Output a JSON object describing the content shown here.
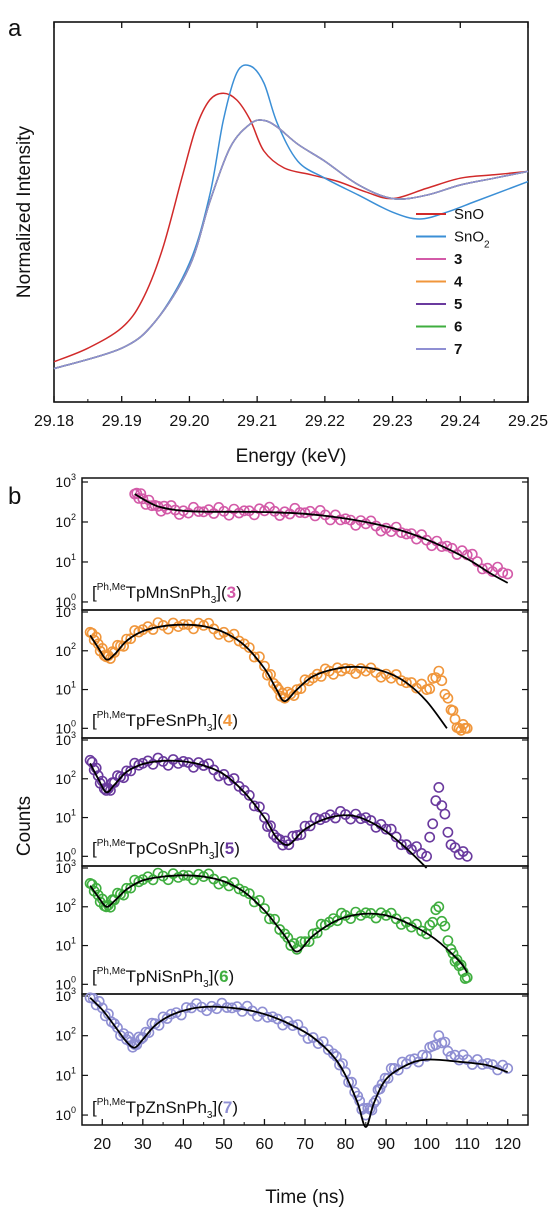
{
  "figure": {
    "panel_a_label": "a",
    "panel_b_label": "b"
  },
  "chart_data": [
    {
      "type": "line",
      "panel": "a",
      "xlabel": "Energy (keV)",
      "ylabel": "Normalized Intensity",
      "xlim": [
        29.18,
        29.25
      ],
      "xticks": [
        "29.18",
        "29.19",
        "29.20",
        "29.21",
        "29.22",
        "29.23",
        "29.24",
        "29.25"
      ],
      "ylim": [
        0,
        1
      ],
      "yticks_shown": false,
      "legend_position": "right",
      "series": [
        {
          "name": "SnO",
          "name_bold": false,
          "color": "#d12a2a",
          "x": [
            29.18,
            29.185,
            29.19,
            29.193,
            29.196,
            29.199,
            29.201,
            29.203,
            29.205,
            29.207,
            29.209,
            29.211,
            29.214,
            29.218,
            29.222,
            29.226,
            29.23,
            29.235,
            29.24,
            29.245,
            29.25
          ],
          "y": [
            0.03,
            0.07,
            0.13,
            0.21,
            0.36,
            0.58,
            0.72,
            0.8,
            0.82,
            0.8,
            0.74,
            0.65,
            0.6,
            0.58,
            0.56,
            0.53,
            0.51,
            0.54,
            0.57,
            0.58,
            0.59
          ]
        },
        {
          "name": "SnO",
          "name_sub": "2",
          "color": "#3b8fd6",
          "x": [
            29.18,
            29.19,
            29.195,
            29.2,
            29.203,
            29.205,
            29.207,
            29.209,
            29.211,
            29.213,
            29.216,
            29.22,
            29.225,
            29.23,
            29.234,
            29.238,
            29.242,
            29.246,
            29.25
          ],
          "y": [
            0.01,
            0.07,
            0.15,
            0.32,
            0.52,
            0.74,
            0.88,
            0.9,
            0.85,
            0.73,
            0.62,
            0.57,
            0.52,
            0.47,
            0.45,
            0.47,
            0.5,
            0.53,
            0.56
          ]
        },
        {
          "name": "3",
          "name_bold": true,
          "color": "#d35aa8",
          "x": [
            29.18,
            29.19,
            29.195,
            29.2,
            29.203,
            29.206,
            29.209,
            29.211,
            29.213,
            29.216,
            29.22,
            29.225,
            29.23,
            29.235,
            29.24,
            29.245,
            29.25
          ],
          "y": [
            0.01,
            0.07,
            0.15,
            0.31,
            0.5,
            0.66,
            0.73,
            0.74,
            0.72,
            0.67,
            0.62,
            0.55,
            0.51,
            0.52,
            0.55,
            0.57,
            0.59
          ]
        },
        {
          "name": "4",
          "name_bold": true,
          "color": "#f0963b",
          "x": [
            29.18,
            29.19,
            29.195,
            29.2,
            29.203,
            29.206,
            29.209,
            29.211,
            29.213,
            29.216,
            29.22,
            29.225,
            29.23,
            29.235,
            29.24,
            29.245,
            29.25
          ],
          "y": [
            0.01,
            0.07,
            0.15,
            0.31,
            0.5,
            0.66,
            0.73,
            0.74,
            0.72,
            0.67,
            0.62,
            0.55,
            0.51,
            0.52,
            0.55,
            0.57,
            0.59
          ]
        },
        {
          "name": "5",
          "name_bold": true,
          "color": "#6a3a9e",
          "x": [
            29.18,
            29.19,
            29.195,
            29.2,
            29.203,
            29.206,
            29.209,
            29.211,
            29.213,
            29.216,
            29.22,
            29.225,
            29.23,
            29.235,
            29.24,
            29.245,
            29.25
          ],
          "y": [
            0.01,
            0.07,
            0.15,
            0.31,
            0.5,
            0.66,
            0.73,
            0.74,
            0.72,
            0.67,
            0.62,
            0.55,
            0.51,
            0.52,
            0.55,
            0.57,
            0.59
          ]
        },
        {
          "name": "6",
          "name_bold": true,
          "color": "#3fae3f",
          "x": [
            29.18,
            29.19,
            29.195,
            29.2,
            29.203,
            29.206,
            29.209,
            29.211,
            29.213,
            29.216,
            29.22,
            29.225,
            29.23,
            29.235,
            29.24,
            29.245,
            29.25
          ],
          "y": [
            0.01,
            0.07,
            0.15,
            0.31,
            0.5,
            0.66,
            0.73,
            0.74,
            0.72,
            0.67,
            0.62,
            0.55,
            0.51,
            0.52,
            0.55,
            0.57,
            0.59
          ]
        },
        {
          "name": "7",
          "name_bold": true,
          "color": "#8f8fd3",
          "x": [
            29.18,
            29.19,
            29.195,
            29.2,
            29.203,
            29.206,
            29.209,
            29.211,
            29.213,
            29.216,
            29.22,
            29.225,
            29.23,
            29.235,
            29.24,
            29.245,
            29.25
          ],
          "y": [
            0.01,
            0.07,
            0.15,
            0.31,
            0.5,
            0.66,
            0.73,
            0.74,
            0.72,
            0.67,
            0.62,
            0.55,
            0.51,
            0.52,
            0.55,
            0.57,
            0.59
          ]
        }
      ]
    },
    {
      "type": "scatter",
      "panel": "b",
      "xlabel": "Time (ns)",
      "ylabel": "Counts",
      "xlim": [
        15,
        125
      ],
      "xticks": [
        "20",
        "30",
        "40",
        "50",
        "60",
        "70",
        "80",
        "90",
        "100",
        "110",
        "120"
      ],
      "yscale": "log",
      "ylim": [
        0.5,
        1000
      ],
      "ytick_base": "10",
      "ytick_exponents": [
        "3",
        "2",
        "1",
        "0"
      ],
      "subplots": [
        {
          "compound_prefix": "[",
          "compound_sup": "Ph,Me",
          "compound_main": "TpMnSnPh",
          "compound_sub": "3",
          "compound_close": "](",
          "compound_number": "3",
          "compound_end": ")",
          "color": "#d35aa8",
          "data": {
            "x": [
              28,
              30,
              33,
              36,
              40,
              45,
              50,
              55,
              60,
              65,
              70,
              75,
              80,
              85,
              90,
              95,
              100,
              105,
              110,
              115,
              120
            ],
            "y": [
              500,
              380,
              260,
              210,
              190,
              180,
              185,
              190,
              190,
              180,
              170,
              150,
              120,
              90,
              70,
              50,
              35,
              25,
              15,
              7,
              5
            ]
          },
          "fit": {
            "x": [
              28,
              31,
              34,
              38,
              42,
              48,
              55,
              62,
              70,
              78,
              86,
              94,
              102,
              110,
              116,
              120
            ],
            "y": [
              500,
              330,
              240,
              200,
              185,
              180,
              180,
              175,
              160,
              130,
              95,
              60,
              30,
              12,
              5,
              3
            ]
          }
        },
        {
          "compound_prefix": "[",
          "compound_sup": "Ph,Me",
          "compound_main": "TpFeSnPh",
          "compound_sub": "3",
          "compound_close": "](",
          "compound_number": "4",
          "compound_end": ")",
          "color": "#f0963b",
          "data": {
            "x": [
              17,
              19,
              21,
              23,
              26,
              30,
              35,
              40,
              45,
              50,
              55,
              60,
              63,
              65,
              68,
              72,
              76,
              80,
              85,
              90,
              95,
              100,
              103,
              106,
              108,
              110
            ],
            "y": [
              300,
              150,
              70,
              90,
              200,
              350,
              450,
              480,
              450,
              300,
              150,
              40,
              12,
              6,
              10,
              20,
              30,
              35,
              30,
              25,
              15,
              10,
              30,
              3,
              1,
              1
            ]
          },
          "fit": {
            "x": [
              17,
              19,
              21,
              23,
              26,
              30,
              35,
              40,
              45,
              50,
              55,
              60,
              63,
              65,
              68,
              72,
              78,
              84,
              90,
              95,
              100,
              105
            ],
            "y": [
              250,
              120,
              60,
              80,
              180,
              320,
              430,
              470,
              430,
              300,
              140,
              35,
              10,
              5,
              10,
              22,
              35,
              38,
              28,
              15,
              5,
              1
            ]
          }
        },
        {
          "compound_prefix": "[",
          "compound_sup": "Ph,Me",
          "compound_main": "TpCoSnPh",
          "compound_sub": "3",
          "compound_close": "](",
          "compound_number": "5",
          "compound_end": ")",
          "color": "#6a3a9e",
          "data": {
            "x": [
              17,
              19,
              21,
              23,
              26,
              30,
              35,
              40,
              45,
              50,
              55,
              60,
              63,
              66,
              70,
              75,
              80,
              85,
              90,
              95,
              100,
              103,
              106,
              110
            ],
            "y": [
              300,
              120,
              50,
              80,
              160,
              250,
              280,
              280,
              220,
              130,
              50,
              10,
              3,
              2,
              6,
              10,
              12,
              10,
              5,
              2,
              1,
              60,
              2,
              1
            ]
          },
          "fit": {
            "x": [
              17,
              19,
              21,
              23,
              26,
              30,
              35,
              40,
              45,
              50,
              55,
              60,
              63,
              66,
              70,
              76,
              82,
              88,
              94,
              100
            ],
            "y": [
              250,
              100,
              45,
              70,
              150,
              240,
              290,
              280,
              220,
              130,
              45,
              10,
              3,
              2,
              5,
              10,
              11,
              6,
              2,
              0.5
            ]
          }
        },
        {
          "compound_prefix": "[",
          "compound_sup": "Ph,Me",
          "compound_main": "TpNiSnPh",
          "compound_sub": "3",
          "compound_close": "](",
          "compound_number": "6",
          "compound_end": ")",
          "color": "#3fae3f",
          "data": {
            "x": [
              17,
              19,
              21,
              23,
              26,
              30,
              35,
              40,
              45,
              50,
              55,
              60,
              65,
              68,
              72,
              76,
              80,
              85,
              90,
              95,
              100,
              103,
              106,
              108,
              110
            ],
            "y": [
              400,
              200,
              100,
              150,
              300,
              500,
              620,
              650,
              600,
              450,
              250,
              90,
              20,
              8,
              20,
              40,
              60,
              70,
              60,
              40,
              20,
              100,
              8,
              3,
              1.5
            ]
          },
          "fit": {
            "x": [
              17,
              19,
              21,
              23,
              26,
              30,
              35,
              40,
              45,
              50,
              55,
              60,
              65,
              68,
              72,
              78,
              84,
              90,
              96,
              102,
              108,
              110
            ],
            "y": [
              350,
              180,
              100,
              140,
              280,
              480,
              600,
              650,
              600,
              450,
              240,
              80,
              18,
              7,
              18,
              45,
              65,
              60,
              35,
              15,
              4,
              2
            ]
          }
        },
        {
          "compound_prefix": "[",
          "compound_sup": "Ph,Me",
          "compound_main": "TpZnSnPh",
          "compound_sub": "3",
          "compound_close": "](",
          "compound_number": "7",
          "compound_end": ")",
          "color": "#8f8fd3",
          "data": {
            "x": [
              17,
              20,
              23,
              26,
              28,
              30,
              33,
              37,
              42,
              47,
              52,
              57,
              62,
              67,
              72,
              77,
              80,
              83,
              85,
              87,
              89,
              92,
              96,
              100,
              103,
              106,
              110,
              115,
              120
            ],
            "y": [
              900,
              500,
              200,
              80,
              60,
              90,
              200,
              350,
              500,
              550,
              500,
              420,
              300,
              180,
              90,
              35,
              12,
              3,
              1,
              2,
              6,
              15,
              25,
              30,
              100,
              30,
              25,
              20,
              15
            ]
          },
          "fit": {
            "x": [
              17,
              20,
              23,
              26,
              28,
              30,
              33,
              37,
              42,
              47,
              52,
              57,
              62,
              67,
              72,
              77,
              80,
              83,
              85,
              87,
              90,
              95,
              100,
              108,
              115,
              120
            ],
            "y": [
              900,
              450,
              180,
              70,
              50,
              80,
              180,
              330,
              480,
              540,
              500,
              420,
              300,
              180,
              90,
              30,
              10,
              2,
              0.5,
              2,
              8,
              18,
              25,
              22,
              18,
              12
            ]
          }
        }
      ]
    }
  ]
}
